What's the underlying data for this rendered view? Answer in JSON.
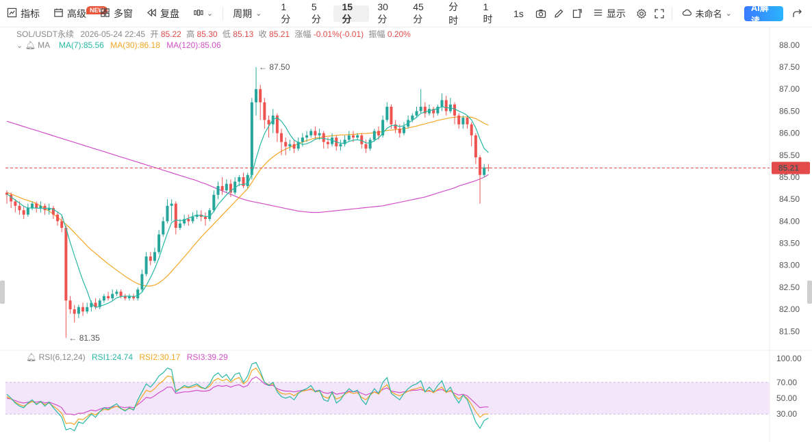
{
  "toolbar": {
    "indicator_label": "指标",
    "new_badge": "NEW",
    "advanced_label": "高级",
    "multiwindow_label": "多窗",
    "replay_label": "复盘",
    "period_label": "周期",
    "timeframes": [
      "1分",
      "5分",
      "15分",
      "30分",
      "45分",
      "分时",
      "1时"
    ],
    "active_timeframe": "15分",
    "interval_label": "1s",
    "display_label": "显示",
    "layout_name": "未命名",
    "ai_label": "AI解读"
  },
  "info": {
    "symbol": "SOL/USDT永续",
    "datetime": "2026-05-24 22:45",
    "open_label": "开",
    "open": "85.22",
    "high_label": "高",
    "high": "85.30",
    "low_label": "低",
    "low": "85.13",
    "close_label": "收",
    "close": "85.21",
    "change_label": "涨幅",
    "change": "-0.01%(-0.01)",
    "amplitude_label": "振幅",
    "amplitude": "0.20%"
  },
  "ma_legend": {
    "label": "MA",
    "ma7": "MA(7):85.56",
    "ma30": "MA(30):86.18",
    "ma120": "MA(120):85.06"
  },
  "rsi_legend": {
    "label": "RSI(6,12,24)",
    "rsi1": "RSI1:24.74",
    "rsi2": "RSI2:30.17",
    "rsi3": "RSI3:39.29"
  },
  "colors": {
    "up": "#26a69a",
    "down": "#ef5350",
    "ma7": "#26b8a4",
    "ma30": "#f5a623",
    "ma120": "#d24fc8",
    "price_line": "#e34a4a",
    "rsi_band": "#f3e6fb"
  },
  "chart_data": {
    "type": "candlestick",
    "interval": "15m",
    "price_axis": {
      "ticks": [
        "88.00",
        "87.50",
        "87.00",
        "86.50",
        "86.00",
        "85.50",
        "85.00",
        "84.50",
        "84.00",
        "83.50",
        "83.00",
        "82.50",
        "82.00",
        "81.50"
      ],
      "range": [
        81.1,
        88.2
      ]
    },
    "current_price": "85.21",
    "high_marker": {
      "value": 87.5,
      "label": "87.50"
    },
    "low_marker": {
      "value": 81.35,
      "label": "81.35"
    },
    "candles": [
      [
        84.65,
        84.6,
        84.7,
        84.4
      ],
      [
        84.6,
        84.45,
        84.65,
        84.3
      ],
      [
        84.45,
        84.35,
        84.5,
        84.2
      ],
      [
        84.35,
        84.25,
        84.45,
        84.15
      ],
      [
        84.25,
        84.15,
        84.35,
        84.05
      ],
      [
        84.15,
        84.3,
        84.4,
        84.1
      ],
      [
        84.3,
        84.4,
        84.45,
        84.25
      ],
      [
        84.4,
        84.3,
        84.45,
        84.2
      ],
      [
        84.3,
        84.35,
        84.45,
        84.2
      ],
      [
        84.35,
        84.25,
        84.4,
        84.15
      ],
      [
        84.25,
        84.3,
        84.4,
        84.15
      ],
      [
        84.3,
        84.15,
        84.35,
        84.05
      ],
      [
        84.15,
        84.0,
        84.2,
        83.9
      ],
      [
        84.0,
        83.85,
        84.1,
        83.75
      ],
      [
        83.85,
        82.2,
        83.9,
        81.35
      ],
      [
        82.2,
        82.0,
        82.3,
        81.9
      ],
      [
        82.0,
        81.9,
        82.1,
        81.7
      ],
      [
        81.9,
        82.05,
        82.1,
        81.8
      ],
      [
        82.05,
        81.95,
        82.15,
        81.85
      ],
      [
        81.95,
        82.05,
        82.15,
        81.9
      ],
      [
        82.05,
        82.15,
        82.2,
        81.95
      ],
      [
        82.15,
        82.05,
        82.25,
        82.0
      ],
      [
        82.05,
        82.2,
        82.25,
        82.0
      ],
      [
        82.2,
        82.3,
        82.35,
        82.15
      ],
      [
        82.3,
        82.25,
        82.4,
        82.2
      ],
      [
        82.25,
        82.35,
        82.45,
        82.2
      ],
      [
        82.35,
        82.4,
        82.45,
        82.3
      ],
      [
        82.4,
        82.3,
        82.45,
        82.25
      ],
      [
        82.3,
        82.25,
        82.35,
        82.2
      ],
      [
        82.25,
        82.3,
        82.35,
        82.2
      ],
      [
        82.3,
        82.25,
        82.35,
        82.2
      ],
      [
        82.25,
        82.45,
        82.5,
        82.2
      ],
      [
        82.45,
        82.8,
        82.9,
        82.4
      ],
      [
        82.8,
        83.2,
        83.3,
        82.75
      ],
      [
        83.2,
        83.1,
        83.3,
        83.0
      ],
      [
        83.1,
        83.3,
        83.4,
        83.05
      ],
      [
        83.3,
        83.7,
        83.8,
        83.25
      ],
      [
        83.7,
        84.0,
        84.1,
        83.65
      ],
      [
        84.0,
        84.35,
        84.5,
        83.95
      ],
      [
        84.35,
        84.4,
        84.5,
        84.0
      ],
      [
        84.4,
        83.85,
        84.45,
        83.7
      ],
      [
        83.85,
        83.95,
        84.05,
        83.8
      ],
      [
        83.95,
        84.05,
        84.15,
        83.9
      ],
      [
        84.05,
        84.0,
        84.15,
        83.9
      ],
      [
        84.0,
        84.1,
        84.2,
        83.95
      ],
      [
        84.1,
        84.15,
        84.25,
        84.05
      ],
      [
        84.15,
        84.1,
        84.25,
        84.0
      ],
      [
        84.1,
        84.05,
        84.2,
        83.9
      ],
      [
        84.05,
        84.25,
        84.3,
        84.0
      ],
      [
        84.25,
        84.6,
        84.7,
        84.2
      ],
      [
        84.6,
        84.8,
        84.9,
        84.5
      ],
      [
        84.8,
        84.7,
        85.0,
        84.6
      ],
      [
        84.7,
        84.85,
        84.95,
        84.65
      ],
      [
        84.85,
        84.65,
        84.95,
        84.55
      ],
      [
        84.65,
        84.9,
        85.0,
        84.6
      ],
      [
        84.9,
        85.0,
        85.05,
        84.8
      ],
      [
        85.0,
        84.8,
        85.1,
        84.75
      ],
      [
        84.8,
        85.05,
        85.1,
        84.75
      ],
      [
        85.05,
        86.7,
        86.8,
        84.95
      ],
      [
        86.7,
        87.0,
        87.5,
        86.4
      ],
      [
        87.0,
        86.7,
        87.1,
        86.3
      ],
      [
        86.7,
        86.3,
        86.8,
        86.1
      ],
      [
        86.3,
        86.2,
        86.4,
        85.9
      ],
      [
        86.2,
        86.4,
        86.55,
        86.0
      ],
      [
        86.4,
        86.0,
        86.45,
        85.8
      ],
      [
        86.0,
        85.8,
        86.1,
        85.5
      ],
      [
        85.8,
        85.7,
        85.9,
        85.5
      ],
      [
        85.7,
        85.75,
        85.85,
        85.6
      ],
      [
        85.75,
        85.65,
        85.85,
        85.55
      ],
      [
        85.65,
        85.8,
        85.9,
        85.6
      ],
      [
        85.8,
        85.9,
        86.0,
        85.7
      ],
      [
        85.9,
        85.95,
        86.05,
        85.8
      ],
      [
        85.95,
        86.05,
        86.1,
        85.9
      ],
      [
        86.05,
        85.95,
        86.15,
        85.85
      ],
      [
        85.95,
        86.0,
        86.1,
        85.85
      ],
      [
        86.0,
        85.8,
        86.05,
        85.65
      ],
      [
        85.8,
        85.75,
        85.9,
        85.65
      ],
      [
        85.75,
        85.9,
        86.0,
        85.7
      ],
      [
        85.9,
        85.7,
        85.95,
        85.6
      ],
      [
        85.7,
        85.75,
        85.85,
        85.6
      ],
      [
        85.75,
        85.85,
        85.95,
        85.7
      ],
      [
        85.85,
        85.95,
        86.05,
        85.8
      ],
      [
        85.95,
        85.9,
        86.05,
        85.8
      ],
      [
        85.9,
        85.95,
        86.0,
        85.85
      ],
      [
        85.95,
        85.75,
        86.0,
        85.65
      ],
      [
        85.75,
        85.65,
        85.85,
        85.55
      ],
      [
        85.65,
        85.85,
        85.9,
        85.6
      ],
      [
        85.85,
        86.05,
        86.1,
        85.8
      ],
      [
        86.05,
        85.95,
        86.15,
        85.85
      ],
      [
        85.95,
        86.3,
        86.4,
        85.9
      ],
      [
        86.3,
        86.6,
        86.7,
        86.25
      ],
      [
        86.6,
        86.2,
        86.65,
        86.1
      ],
      [
        86.2,
        86.1,
        86.3,
        86.0
      ],
      [
        86.1,
        86.0,
        86.2,
        85.9
      ],
      [
        86.0,
        86.15,
        86.25,
        85.95
      ],
      [
        86.15,
        86.3,
        86.4,
        86.1
      ],
      [
        86.3,
        86.4,
        86.45,
        86.25
      ],
      [
        86.4,
        86.5,
        86.6,
        86.35
      ],
      [
        86.5,
        86.6,
        87.0,
        86.45
      ],
      [
        86.6,
        86.45,
        86.7,
        86.35
      ],
      [
        86.45,
        86.55,
        86.65,
        86.4
      ],
      [
        86.55,
        86.45,
        86.6,
        86.35
      ],
      [
        86.45,
        86.6,
        86.65,
        86.4
      ],
      [
        86.6,
        86.75,
        86.9,
        86.5
      ],
      [
        86.75,
        86.5,
        86.85,
        86.4
      ],
      [
        86.5,
        86.65,
        86.8,
        86.45
      ],
      [
        86.65,
        86.4,
        86.7,
        86.2
      ],
      [
        86.4,
        86.2,
        86.45,
        86.1
      ],
      [
        86.2,
        86.35,
        86.4,
        86.1
      ],
      [
        86.35,
        86.2,
        86.4,
        86.1
      ],
      [
        86.2,
        85.95,
        86.25,
        85.7
      ],
      [
        85.95,
        85.45,
        86.0,
        85.3
      ],
      [
        85.45,
        85.05,
        85.5,
        84.4
      ],
      [
        85.05,
        85.22,
        85.3,
        85.0
      ],
      [
        85.22,
        85.21,
        85.3,
        85.13
      ]
    ],
    "ma7": [
      84.62,
      84.55,
      84.48,
      84.41,
      84.34,
      84.3,
      84.3,
      84.3,
      84.29,
      84.29,
      84.3,
      84.27,
      84.21,
      84.14,
      83.84,
      83.52,
      83.22,
      82.93,
      82.65,
      82.42,
      82.14,
      82.04,
      82.07,
      82.1,
      82.14,
      82.19,
      82.26,
      82.29,
      82.3,
      82.3,
      82.29,
      82.31,
      82.39,
      82.54,
      82.72,
      82.92,
      83.16,
      83.45,
      83.73,
      83.97,
      84.03,
      84.01,
      84.03,
      84.07,
      84.11,
      84.14,
      84.13,
      84.11,
      84.11,
      84.22,
      84.38,
      84.49,
      84.6,
      84.69,
      84.76,
      84.83,
      84.84,
      84.85,
      85.07,
      85.42,
      85.74,
      85.99,
      86.16,
      86.31,
      86.35,
      86.27,
      86.14,
      85.97,
      85.84,
      85.79,
      85.74,
      85.76,
      85.8,
      85.86,
      85.88,
      85.88,
      85.86,
      85.84,
      85.8,
      85.77,
      85.77,
      85.81,
      85.84,
      85.85,
      85.83,
      85.78,
      85.77,
      85.83,
      85.89,
      86.0,
      86.11,
      86.17,
      86.18,
      86.15,
      86.17,
      86.23,
      86.29,
      86.36,
      86.45,
      86.48,
      86.51,
      86.53,
      86.56,
      86.6,
      86.58,
      86.57,
      86.55,
      86.5,
      86.46,
      86.4,
      86.3,
      86.12,
      85.87,
      85.65,
      85.56
    ],
    "ma30": [
      84.65,
      84.62,
      84.58,
      84.54,
      84.5,
      84.47,
      84.44,
      84.4,
      84.35,
      84.29,
      84.23,
      84.16,
      84.09,
      84.01,
      83.93,
      83.84,
      83.74,
      83.64,
      83.54,
      83.44,
      83.35,
      83.27,
      83.19,
      83.11,
      83.03,
      82.96,
      82.89,
      82.82,
      82.75,
      82.69,
      82.63,
      82.58,
      82.55,
      82.53,
      82.53,
      82.55,
      82.6,
      82.67,
      82.76,
      82.86,
      82.97,
      83.08,
      83.19,
      83.3,
      83.42,
      83.53,
      83.64,
      83.74,
      83.84,
      83.94,
      84.04,
      84.14,
      84.24,
      84.34,
      84.44,
      84.54,
      84.64,
      84.74,
      84.88,
      85.03,
      85.17,
      85.28,
      85.38,
      85.46,
      85.53,
      85.59,
      85.64,
      85.68,
      85.72,
      85.76,
      85.8,
      85.83,
      85.86,
      85.89,
      85.9,
      85.92,
      85.93,
      85.94,
      85.95,
      85.96,
      85.96,
      85.97,
      85.97,
      85.98,
      85.99,
      85.99,
      86.0,
      86.01,
      86.02,
      86.04,
      86.06,
      86.07,
      86.08,
      86.09,
      86.1,
      86.12,
      86.14,
      86.16,
      86.19,
      86.21,
      86.24,
      86.26,
      86.29,
      86.31,
      86.33,
      86.35,
      86.36,
      86.37,
      86.37,
      86.37,
      86.36,
      86.33,
      86.28,
      86.22,
      86.18
    ],
    "ma120": [
      86.27,
      86.24,
      86.21,
      86.18,
      86.15,
      86.12,
      86.09,
      86.06,
      86.03,
      86.0,
      85.97,
      85.94,
      85.91,
      85.88,
      85.85,
      85.82,
      85.79,
      85.76,
      85.73,
      85.7,
      85.67,
      85.64,
      85.61,
      85.58,
      85.55,
      85.52,
      85.49,
      85.46,
      85.43,
      85.4,
      85.37,
      85.34,
      85.31,
      85.28,
      85.25,
      85.22,
      85.19,
      85.16,
      85.13,
      85.1,
      85.07,
      85.04,
      85.01,
      84.98,
      84.95,
      84.92,
      84.88,
      84.85,
      84.81,
      84.77,
      84.73,
      84.69,
      84.65,
      84.61,
      84.57,
      84.53,
      84.5,
      84.47,
      84.45,
      84.43,
      84.41,
      84.39,
      84.37,
      84.35,
      84.33,
      84.31,
      84.29,
      84.27,
      84.25,
      84.23,
      84.22,
      84.21,
      84.2,
      84.2,
      84.2,
      84.21,
      84.22,
      84.23,
      84.24,
      84.25,
      84.26,
      84.27,
      84.28,
      84.29,
      84.3,
      84.31,
      84.32,
      84.33,
      84.34,
      84.35,
      84.37,
      84.39,
      84.41,
      84.43,
      84.45,
      84.47,
      84.49,
      84.51,
      84.53,
      84.55,
      84.58,
      84.61,
      84.64,
      84.67,
      84.7,
      84.73,
      84.76,
      84.8,
      84.83,
      84.86,
      84.89,
      84.92,
      84.96,
      85.0,
      85.06
    ],
    "rsi_axis": {
      "ticks": [
        "100.00",
        "70.00",
        "50.00",
        "30.00"
      ],
      "range": [
        0,
        100
      ],
      "band": [
        30,
        70
      ]
    },
    "rsi1": [
      55,
      50,
      44,
      40,
      38,
      44,
      48,
      42,
      46,
      40,
      45,
      38,
      32,
      26,
      10,
      12,
      9,
      20,
      18,
      24,
      30,
      26,
      33,
      38,
      36,
      40,
      43,
      37,
      34,
      38,
      35,
      48,
      58,
      68,
      64,
      70,
      78,
      82,
      88,
      86,
      58,
      62,
      66,
      64,
      66,
      68,
      64,
      62,
      68,
      78,
      82,
      76,
      80,
      72,
      80,
      82,
      70,
      78,
      93,
      95,
      84,
      70,
      66,
      70,
      58,
      52,
      50,
      52,
      48,
      56,
      60,
      62,
      66,
      58,
      60,
      48,
      46,
      58,
      44,
      48,
      56,
      62,
      58,
      60,
      48,
      42,
      54,
      62,
      56,
      70,
      76,
      56,
      52,
      48,
      56,
      62,
      66,
      68,
      72,
      58,
      64,
      58,
      66,
      72,
      58,
      64,
      52,
      44,
      54,
      48,
      34,
      20,
      12,
      22,
      25
    ],
    "rsi2": [
      52,
      49,
      45,
      42,
      40,
      43,
      46,
      43,
      45,
      42,
      44,
      40,
      36,
      31,
      18,
      19,
      17,
      24,
      23,
      27,
      31,
      29,
      33,
      36,
      35,
      38,
      40,
      37,
      35,
      37,
      36,
      44,
      52,
      60,
      58,
      62,
      68,
      72,
      78,
      77,
      60,
      62,
      64,
      63,
      64,
      66,
      63,
      62,
      65,
      72,
      75,
      72,
      74,
      70,
      74,
      76,
      68,
      72,
      85,
      88,
      80,
      70,
      67,
      68,
      60,
      56,
      55,
      56,
      53,
      57,
      59,
      60,
      62,
      58,
      59,
      52,
      50,
      56,
      49,
      51,
      55,
      58,
      56,
      57,
      51,
      48,
      54,
      58,
      55,
      63,
      67,
      58,
      55,
      53,
      56,
      59,
      61,
      62,
      64,
      58,
      60,
      57,
      61,
      64,
      57,
      60,
      54,
      49,
      54,
      50,
      42,
      33,
      26,
      30,
      30
    ],
    "rsi3": [
      50,
      49,
      47,
      45,
      44,
      45,
      46,
      45,
      46,
      44,
      45,
      43,
      41,
      38,
      30,
      30,
      29,
      31,
      31,
      33,
      35,
      34,
      36,
      38,
      38,
      39,
      40,
      39,
      38,
      39,
      38,
      42,
      46,
      51,
      50,
      53,
      57,
      60,
      64,
      64,
      56,
      57,
      58,
      58,
      59,
      60,
      59,
      59,
      60,
      64,
      66,
      65,
      66,
      64,
      66,
      67,
      64,
      66,
      74,
      77,
      73,
      68,
      66,
      66,
      62,
      60,
      59,
      59,
      58,
      59,
      60,
      60,
      61,
      59,
      60,
      57,
      56,
      58,
      55,
      56,
      57,
      59,
      58,
      59,
      56,
      54,
      56,
      58,
      57,
      61,
      63,
      59,
      58,
      57,
      58,
      59,
      60,
      60,
      61,
      59,
      59,
      58,
      60,
      61,
      58,
      59,
      56,
      54,
      55,
      53,
      48,
      43,
      38,
      39,
      39
    ]
  }
}
